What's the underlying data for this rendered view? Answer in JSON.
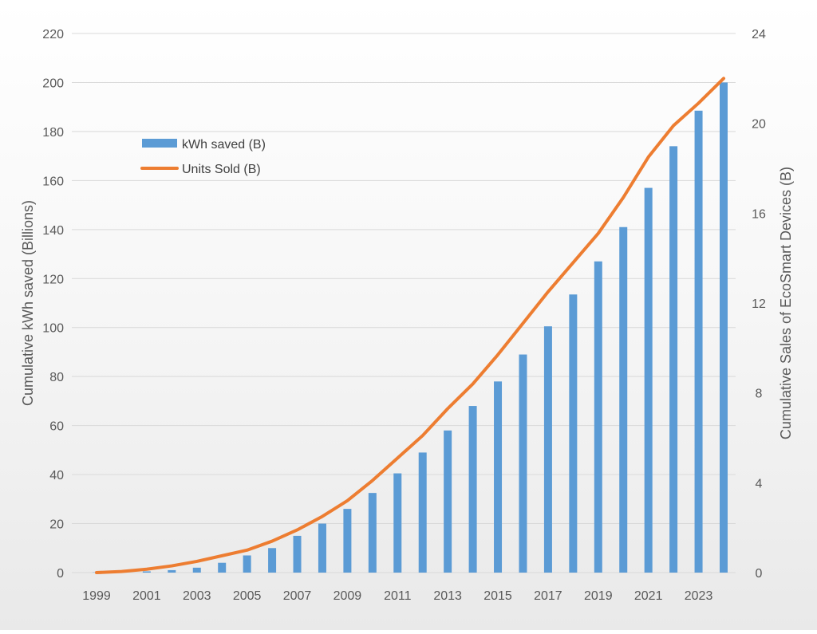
{
  "chart_data": {
    "type": "bar",
    "x": [
      1999,
      2000,
      2001,
      2002,
      2003,
      2004,
      2005,
      2006,
      2007,
      2008,
      2009,
      2010,
      2011,
      2012,
      2013,
      2014,
      2015,
      2016,
      2017,
      2018,
      2019,
      2020,
      2021,
      2022,
      2023,
      2024
    ],
    "x_tick_labels": [
      "1999",
      "2001",
      "2003",
      "2005",
      "2007",
      "2009",
      "2011",
      "2013",
      "2015",
      "2017",
      "2019",
      "2021",
      "2023"
    ],
    "series": [
      {
        "name": "kWh saved (B)",
        "type": "bar",
        "axis": "left",
        "color": "#5b9bd5",
        "values": [
          0.1,
          0.2,
          0.5,
          1,
          2,
          4,
          7,
          10,
          15,
          20,
          26,
          32.5,
          40.5,
          49,
          58,
          68,
          78,
          89,
          100.5,
          113.5,
          127,
          141,
          157,
          174,
          188.5,
          200
        ]
      },
      {
        "name": "Units Sold (B)",
        "type": "line",
        "axis": "right",
        "color": "#ed7d31",
        "values": [
          0.0,
          0.05,
          0.15,
          0.3,
          0.5,
          0.75,
          1.0,
          1.4,
          1.9,
          2.5,
          3.2,
          4.1,
          5.1,
          6.1,
          7.3,
          8.4,
          9.7,
          11.1,
          12.5,
          13.8,
          15.1,
          16.7,
          18.5,
          19.9,
          20.9,
          22.0
        ]
      }
    ],
    "y_left": {
      "label": "Cumulative kWh saved (Billions)",
      "ticks": [
        "0",
        "20",
        "40",
        "60",
        "80",
        "100",
        "120",
        "140",
        "160",
        "180",
        "200",
        "220"
      ],
      "min": 0,
      "max": 220
    },
    "y_right": {
      "label": "Cumulative Sales of EcoSmart Devices (B)",
      "ticks": [
        "0",
        "4",
        "8",
        "12",
        "16",
        "20",
        "24"
      ],
      "min": 0,
      "max": 24
    },
    "legend": {
      "placement": "upper-left",
      "items": [
        "kWh saved (B)",
        "Units Sold (B)"
      ]
    },
    "grid": true,
    "colors": {
      "gridline": "#d9d9d9",
      "text": "#595959"
    }
  }
}
